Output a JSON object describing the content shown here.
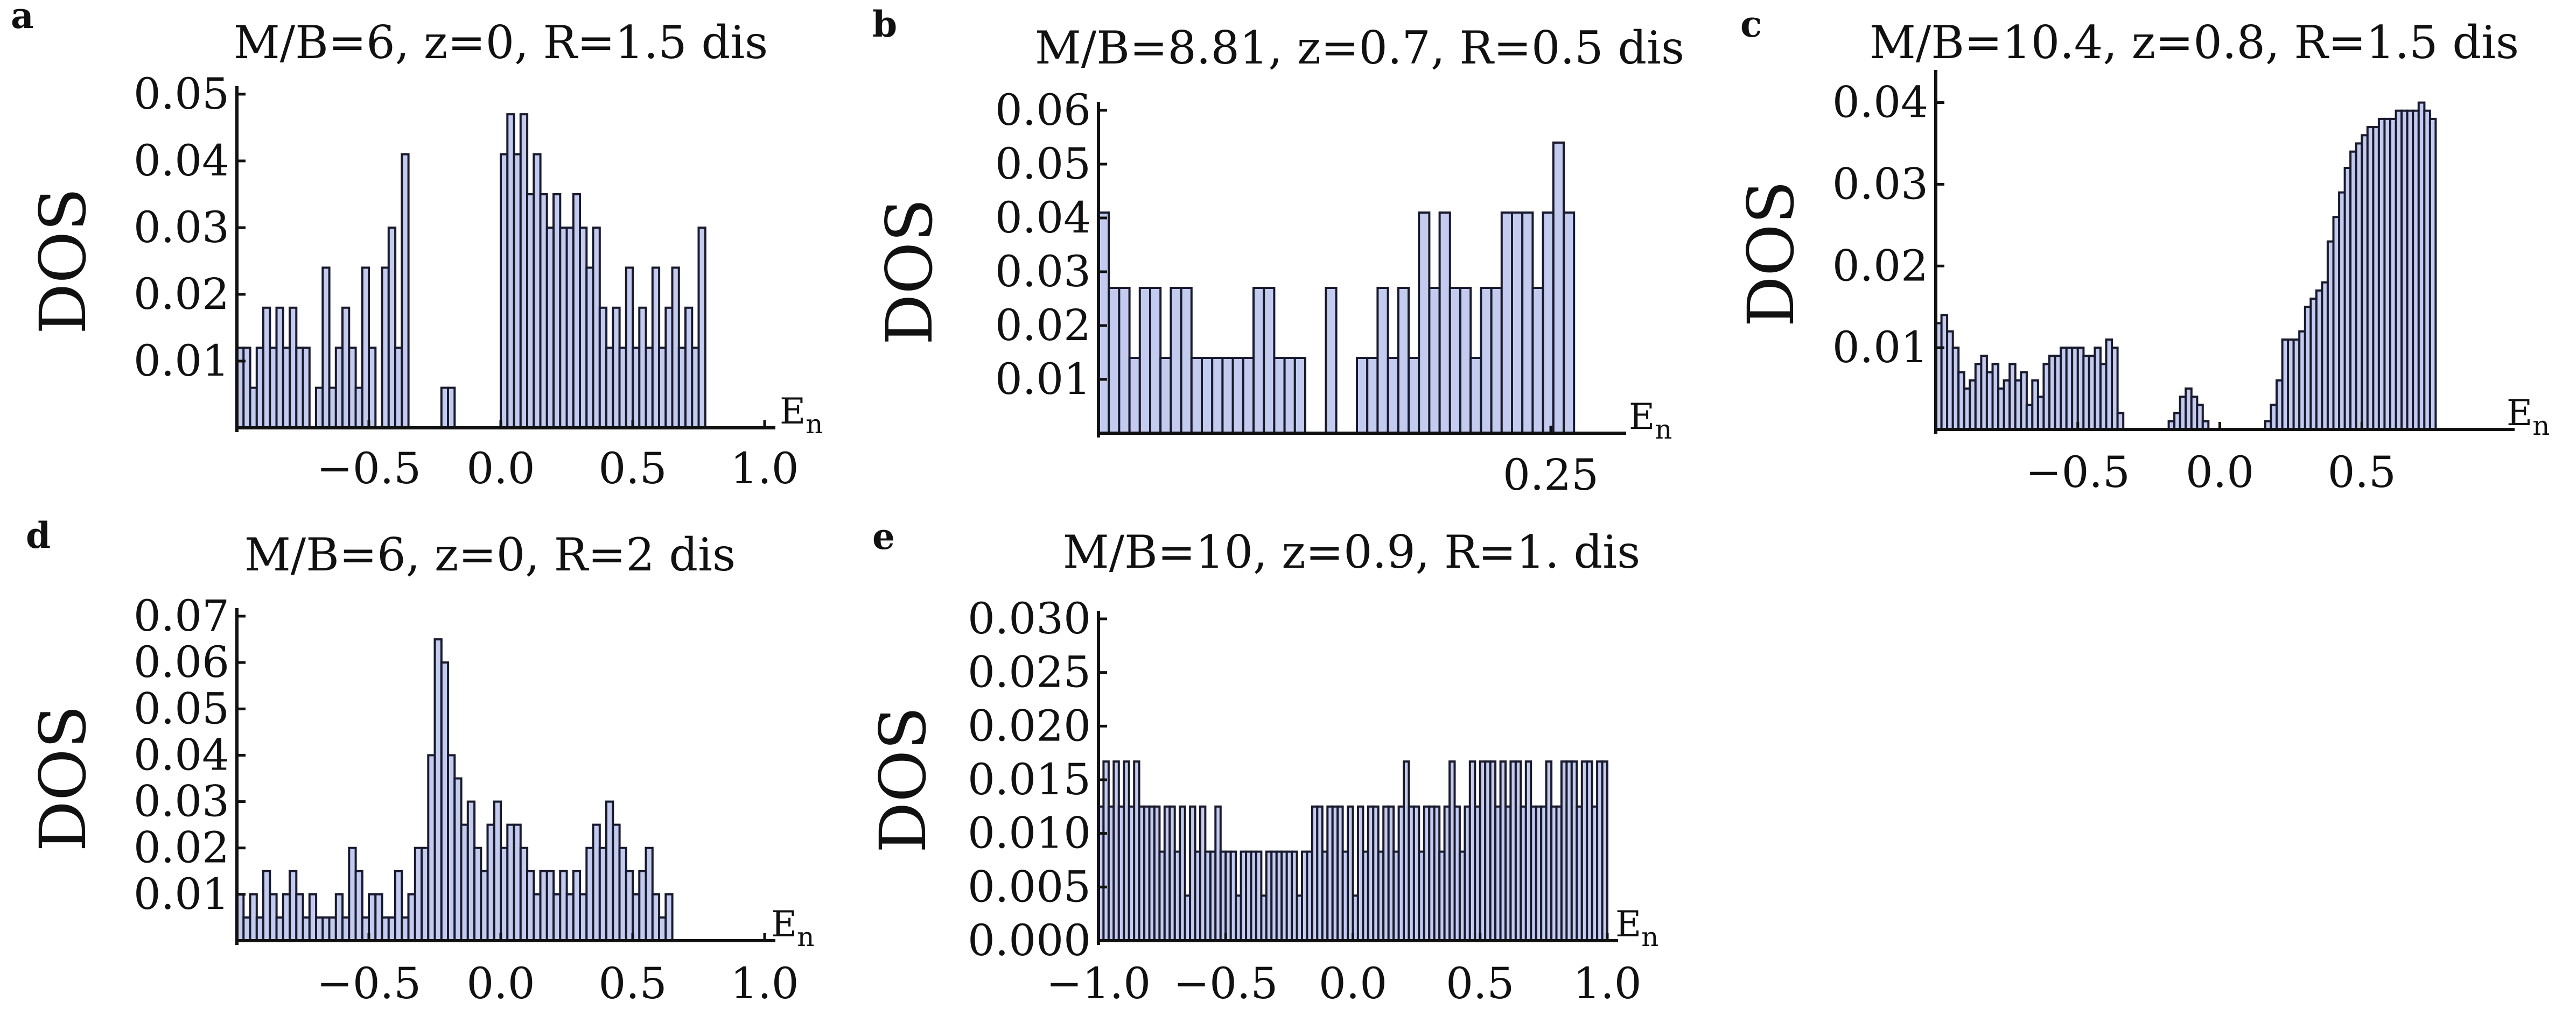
{
  "chart_data": [
    {
      "id": "a",
      "panel_label": "a",
      "type": "bar",
      "title": "M/B=6, z=0, R=1.5 dis",
      "xlabel": "E",
      "xlabel_sub": "n",
      "ylabel": "DOS",
      "xlim": [
        -1.0,
        1.0
      ],
      "ylim": [
        0,
        0.05
      ],
      "x_ticks": [
        -0.5,
        0.0,
        0.5,
        1.0
      ],
      "x_tick_labels": [
        "−0.5",
        "0.0",
        "0.5",
        "1.0"
      ],
      "y_ticks": [
        0.01,
        0.02,
        0.03,
        0.04,
        0.05
      ],
      "y_tick_labels": [
        "0.01",
        "0.02",
        "0.03",
        "0.04",
        "0.05"
      ],
      "bin_start": -1.0,
      "bin_width": 0.025,
      "values": [
        0.012,
        0.012,
        0.006,
        0.012,
        0.018,
        0.012,
        0.018,
        0.012,
        0.018,
        0.012,
        0.012,
        0.0,
        0.006,
        0.024,
        0.006,
        0.012,
        0.018,
        0.012,
        0.006,
        0.024,
        0.012,
        0.0,
        0.024,
        0.03,
        0.012,
        0.041,
        0.0,
        0.0,
        0.0,
        0.0,
        0.0,
        0.006,
        0.006,
        0.0,
        0.0,
        0.0,
        0.0,
        0.0,
        0.0,
        0.0,
        0.041,
        0.047,
        0.041,
        0.047,
        0.035,
        0.041,
        0.035,
        0.03,
        0.035,
        0.03,
        0.03,
        0.035,
        0.03,
        0.024,
        0.03,
        0.018,
        0.012,
        0.018,
        0.012,
        0.024,
        0.012,
        0.018,
        0.012,
        0.024,
        0.012,
        0.018,
        0.024,
        0.012,
        0.018,
        0.012,
        0.03
      ]
    },
    {
      "id": "b",
      "panel_label": "b",
      "type": "bar",
      "title": "M/B=8.81, z=0.7, R=0.5 dis",
      "xlabel": "E",
      "xlabel_sub": "n",
      "ylabel": "DOS",
      "xlim": [
        -0.1,
        0.3
      ],
      "ylim": [
        0,
        0.06
      ],
      "x_ticks": [
        0.25
      ],
      "x_tick_labels": [
        "0.25"
      ],
      "y_ticks": [
        0.01,
        0.02,
        0.03,
        0.04,
        0.05,
        0.06
      ],
      "y_tick_labels": [
        "0.01",
        "0.02",
        "0.03",
        "0.04",
        "0.05",
        "0.06"
      ],
      "bin_start": -0.1,
      "bin_width": 0.008,
      "values": [
        0.041,
        0.027,
        0.027,
        0.014,
        0.027,
        0.027,
        0.014,
        0.027,
        0.027,
        0.014,
        0.014,
        0.014,
        0.014,
        0.014,
        0.014,
        0.027,
        0.027,
        0.014,
        0.014,
        0.014,
        0.0,
        0.0,
        0.027,
        0.0,
        0.0,
        0.014,
        0.014,
        0.027,
        0.014,
        0.027,
        0.014,
        0.041,
        0.027,
        0.041,
        0.027,
        0.027,
        0.014,
        0.027,
        0.027,
        0.041,
        0.041,
        0.041,
        0.027,
        0.041,
        0.054,
        0.041
      ]
    },
    {
      "id": "c",
      "panel_label": "c",
      "type": "bar",
      "title": "M/B=10.4, z=0.8, R=1.5 dis",
      "xlabel": "E",
      "xlabel_sub": "n",
      "ylabel": "DOS",
      "xlim": [
        -1.0,
        1.0
      ],
      "ylim": [
        0,
        0.043
      ],
      "x_ticks": [
        -0.5,
        0.0,
        0.5
      ],
      "x_tick_labels": [
        "−0.5",
        "0.0",
        "0.5"
      ],
      "y_ticks": [
        0.01,
        0.02,
        0.03,
        0.04
      ],
      "y_tick_labels": [
        "0.01",
        "0.02",
        "0.03",
        "0.04"
      ],
      "bin_start": -1.0,
      "bin_width": 0.02,
      "values": [
        0.013,
        0.014,
        0.012,
        0.01,
        0.007,
        0.005,
        0.006,
        0.008,
        0.009,
        0.007,
        0.008,
        0.005,
        0.006,
        0.008,
        0.006,
        0.007,
        0.003,
        0.006,
        0.004,
        0.008,
        0.009,
        0.009,
        0.01,
        0.01,
        0.01,
        0.01,
        0.009,
        0.009,
        0.01,
        0.008,
        0.011,
        0.01,
        0.002,
        0.0,
        0.0,
        0.0,
        0.0,
        0.0,
        0.0,
        0.0,
        0.0,
        0.001,
        0.002,
        0.004,
        0.005,
        0.004,
        0.003,
        0.001,
        0.0,
        0.0,
        0.0,
        0.0,
        0.0,
        0.0,
        0.0,
        0.0,
        0.0,
        0.0,
        0.001,
        0.003,
        0.006,
        0.011,
        0.011,
        0.011,
        0.012,
        0.015,
        0.016,
        0.017,
        0.018,
        0.023,
        0.026,
        0.029,
        0.032,
        0.034,
        0.035,
        0.036,
        0.037,
        0.037,
        0.038,
        0.038,
        0.038,
        0.039,
        0.039,
        0.039,
        0.039,
        0.04,
        0.039,
        0.038
      ]
    },
    {
      "id": "d",
      "panel_label": "d",
      "type": "bar",
      "title": "M/B=6, z=0, R=2 dis",
      "xlabel": "E",
      "xlabel_sub": "n",
      "ylabel": "DOS",
      "xlim": [
        -1.0,
        1.0
      ],
      "ylim": [
        0,
        0.07
      ],
      "x_ticks": [
        -0.5,
        0.0,
        0.5,
        1.0
      ],
      "x_tick_labels": [
        "−0.5",
        "0.0",
        "0.5",
        "1.0"
      ],
      "y_ticks": [
        0.01,
        0.02,
        0.03,
        0.04,
        0.05,
        0.06,
        0.07
      ],
      "y_tick_labels": [
        "0.01",
        "0.02",
        "0.03",
        "0.04",
        "0.05",
        "0.06",
        "0.07"
      ],
      "bin_start": -1.0,
      "bin_width": 0.025,
      "values": [
        0.01,
        0.005,
        0.01,
        0.005,
        0.015,
        0.01,
        0.005,
        0.01,
        0.015,
        0.01,
        0.005,
        0.01,
        0.005,
        0.005,
        0.005,
        0.01,
        0.005,
        0.02,
        0.015,
        0.005,
        0.01,
        0.01,
        0.005,
        0.005,
        0.015,
        0.005,
        0.01,
        0.02,
        0.02,
        0.04,
        0.065,
        0.06,
        0.04,
        0.035,
        0.025,
        0.03,
        0.02,
        0.015,
        0.025,
        0.03,
        0.02,
        0.025,
        0.025,
        0.02,
        0.015,
        0.01,
        0.015,
        0.015,
        0.01,
        0.015,
        0.01,
        0.015,
        0.01,
        0.02,
        0.025,
        0.02,
        0.03,
        0.025,
        0.02,
        0.015,
        0.01,
        0.015,
        0.02,
        0.01,
        0.005,
        0.01
      ]
    },
    {
      "id": "e",
      "panel_label": "e",
      "type": "bar",
      "title": "M/B=10, z=0.9, R=1. dis",
      "xlabel": "E",
      "xlabel_sub": "n",
      "ylabel": "DOS",
      "xlim": [
        -1.0,
        1.0
      ],
      "ylim": [
        0,
        0.03
      ],
      "x_ticks": [
        -1.0,
        -0.5,
        0.0,
        0.5,
        1.0
      ],
      "x_tick_labels": [
        "−1.0",
        "−0.5",
        "0.0",
        "0.5",
        "1.0"
      ],
      "y_ticks": [
        0.0,
        0.005,
        0.01,
        0.015,
        0.02,
        0.025,
        0.03
      ],
      "y_tick_labels": [
        "0.000",
        "0.005",
        "0.010",
        "0.015",
        "0.020",
        "0.025",
        "0.030"
      ],
      "bin_start": -1.0,
      "bin_width": 0.02,
      "values": [
        0.0125,
        0.0167,
        0.0125,
        0.0167,
        0.0125,
        0.0167,
        0.0125,
        0.0167,
        0.0125,
        0.0125,
        0.0125,
        0.0125,
        0.0083,
        0.0125,
        0.0125,
        0.0083,
        0.0125,
        0.0042,
        0.0125,
        0.0083,
        0.0125,
        0.0083,
        0.0083,
        0.0125,
        0.0083,
        0.0083,
        0.0083,
        0.0042,
        0.0083,
        0.0083,
        0.0083,
        0.0083,
        0.0042,
        0.0083,
        0.0083,
        0.0083,
        0.0083,
        0.0083,
        0.0083,
        0.0042,
        0.0083,
        0.0083,
        0.0125,
        0.0125,
        0.0083,
        0.0125,
        0.0125,
        0.0125,
        0.0083,
        0.0125,
        0.0042,
        0.0125,
        0.0083,
        0.0125,
        0.0125,
        0.0083,
        0.0125,
        0.0125,
        0.0083,
        0.0125,
        0.0167,
        0.0125,
        0.0125,
        0.0083,
        0.0125,
        0.0125,
        0.0125,
        0.0083,
        0.0125,
        0.0167,
        0.0125,
        0.0083,
        0.0125,
        0.0167,
        0.0125,
        0.0167,
        0.0167,
        0.0167,
        0.0125,
        0.0167,
        0.0125,
        0.0167,
        0.0167,
        0.0125,
        0.0167,
        0.0125,
        0.0125,
        0.0125,
        0.0167,
        0.0125,
        0.0125,
        0.0167,
        0.0167,
        0.0167,
        0.0125,
        0.0167,
        0.0167,
        0.0125,
        0.0167,
        0.0167
      ]
    }
  ]
}
